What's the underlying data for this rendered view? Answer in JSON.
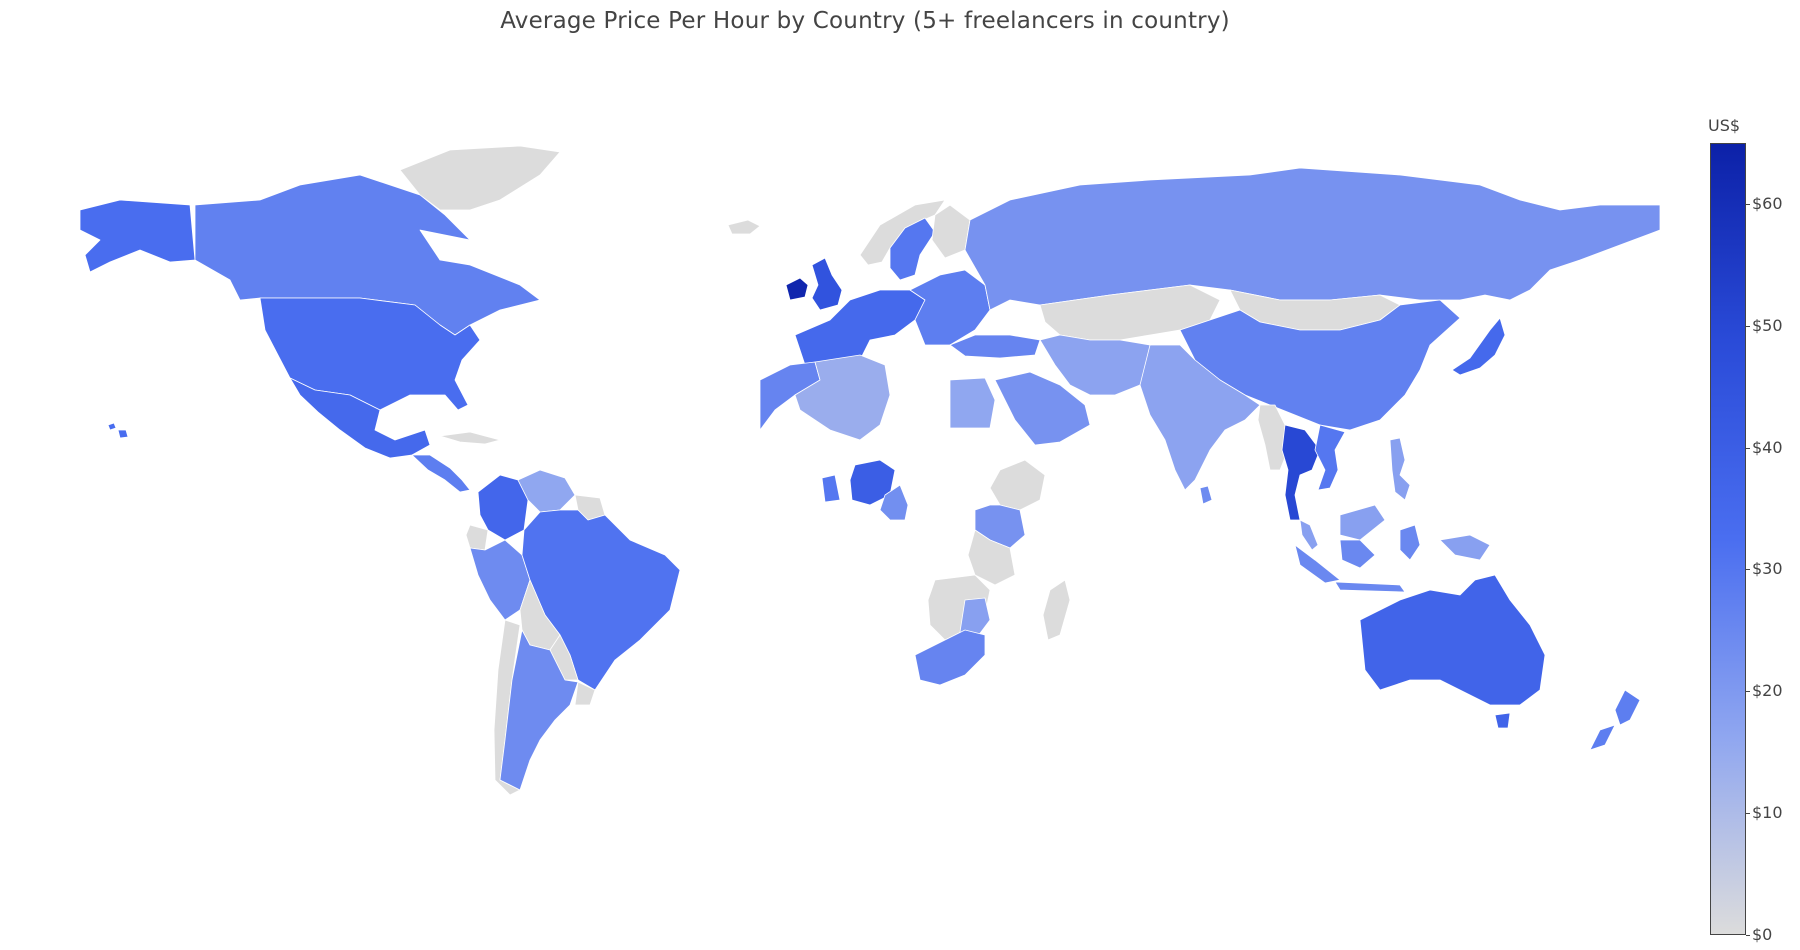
{
  "title": "Average Price Per Hour by Country (5+ freelancers in country)",
  "colorbar": {
    "title": "US$",
    "min": 0,
    "max": 65,
    "colors": [
      "#dcdcdc",
      "#8fa6f0",
      "#4a6ef0",
      "#2a4bd8",
      "#0c21a8"
    ],
    "no_data_color": "#dcdcdc",
    "ticks": [
      {
        "value": 60,
        "label": "$60"
      },
      {
        "value": 50,
        "label": "$50"
      },
      {
        "value": 40,
        "label": "$40"
      },
      {
        "value": 30,
        "label": "$30"
      },
      {
        "value": 20,
        "label": "$20"
      },
      {
        "value": 10,
        "label": "$10"
      },
      {
        "value": 0,
        "label": "$0"
      }
    ]
  },
  "regions": [
    {
      "id": "canada",
      "value": 27
    },
    {
      "id": "greenland",
      "value": 0
    },
    {
      "id": "iceland",
      "value": 0
    },
    {
      "id": "usa",
      "value": 33
    },
    {
      "id": "alaska",
      "value": 33
    },
    {
      "id": "hawaii",
      "value": 33
    },
    {
      "id": "mexico",
      "value": 35
    },
    {
      "id": "cuba",
      "value": 0
    },
    {
      "id": "central-america",
      "value": 28
    },
    {
      "id": "colombia",
      "value": 36
    },
    {
      "id": "venezuela",
      "value": 16
    },
    {
      "id": "guyana",
      "value": 0
    },
    {
      "id": "ecuador",
      "value": 0
    },
    {
      "id": "peru",
      "value": 24
    },
    {
      "id": "brazil",
      "value": 31
    },
    {
      "id": "bolivia",
      "value": 0
    },
    {
      "id": "paraguay",
      "value": 0
    },
    {
      "id": "uruguay",
      "value": 0
    },
    {
      "id": "chile",
      "value": 0
    },
    {
      "id": "argentina",
      "value": 24
    },
    {
      "id": "ireland",
      "value": 63
    },
    {
      "id": "uk",
      "value": 45
    },
    {
      "id": "norway",
      "value": 0
    },
    {
      "id": "sweden",
      "value": 30
    },
    {
      "id": "finland",
      "value": 0
    },
    {
      "id": "western-europe",
      "value": 35
    },
    {
      "id": "eastern-europe",
      "value": 28
    },
    {
      "id": "russia",
      "value": 22
    },
    {
      "id": "kazakhstan",
      "value": 0
    },
    {
      "id": "mongolia",
      "value": 0
    },
    {
      "id": "china",
      "value": 27
    },
    {
      "id": "japan",
      "value": 35
    },
    {
      "id": "turkey",
      "value": 26
    },
    {
      "id": "morocco",
      "value": 26
    },
    {
      "id": "algeria",
      "value": 14
    },
    {
      "id": "egypt",
      "value": 16
    },
    {
      "id": "saudi-arabia",
      "value": 22
    },
    {
      "id": "iran-afghanistan",
      "value": 17
    },
    {
      "id": "india",
      "value": 17
    },
    {
      "id": "sri-lanka",
      "value": 24
    },
    {
      "id": "myanmar",
      "value": 0
    },
    {
      "id": "thailand",
      "value": 50
    },
    {
      "id": "vietnam",
      "value": 30
    },
    {
      "id": "philippines",
      "value": 18
    },
    {
      "id": "malaysia",
      "value": 18
    },
    {
      "id": "indonesia",
      "value": 25
    },
    {
      "id": "papua",
      "value": 18
    },
    {
      "id": "australia",
      "value": 37
    },
    {
      "id": "tasmania",
      "value": 37
    },
    {
      "id": "new-zealand",
      "value": 28
    },
    {
      "id": "west-africa",
      "value": 30
    },
    {
      "id": "nigeria",
      "value": 40
    },
    {
      "id": "cameroon",
      "value": 23
    },
    {
      "id": "ethiopia",
      "value": 0
    },
    {
      "id": "kenya-uganda",
      "value": 22
    },
    {
      "id": "tanzania",
      "value": 0
    },
    {
      "id": "southern-africa",
      "value": 0
    },
    {
      "id": "mozambique",
      "value": 18
    },
    {
      "id": "south-africa",
      "value": 26
    },
    {
      "id": "madagascar",
      "value": 0
    }
  ]
}
